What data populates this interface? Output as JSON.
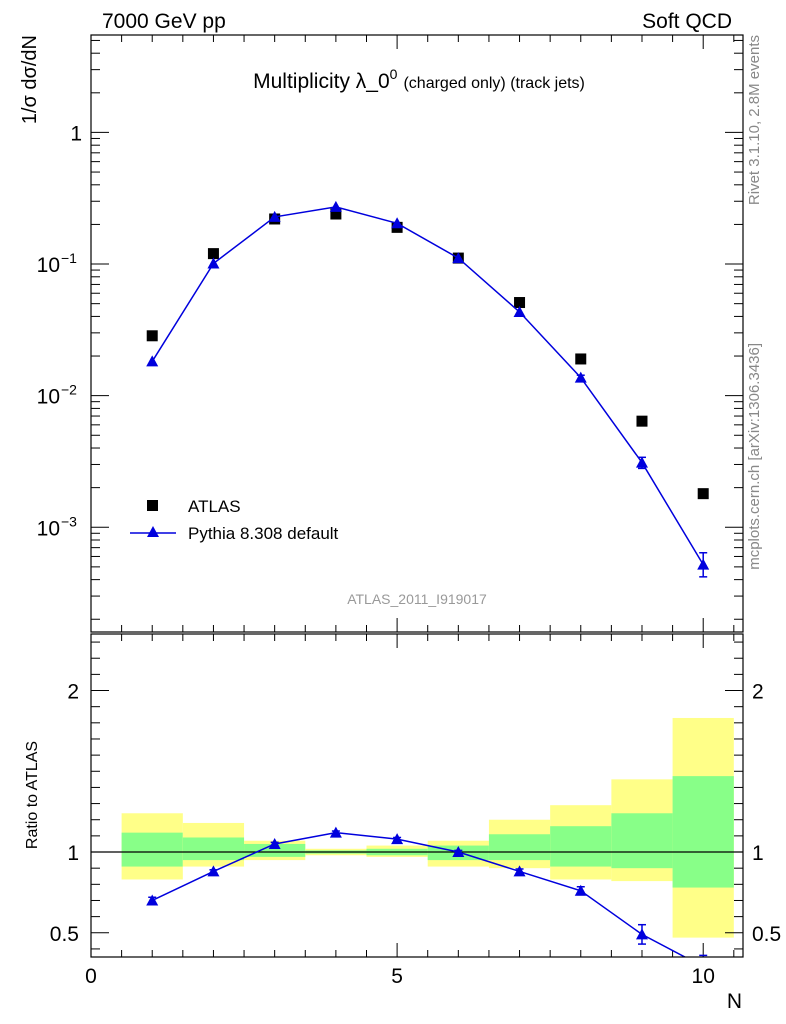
{
  "header": {
    "left": "7000 GeV pp",
    "right": "Soft QCD"
  },
  "side_labels": {
    "rivet": "Rivet 3.1.10,  2.8M events",
    "mcplots": "mcplots.cern.ch [arXiv:1306.3436]"
  },
  "chart_data": [
    {
      "type": "scatter",
      "title_main": "Multiplicity λ_0",
      "title_sup": "0",
      "title_sub": "(charged only) (track jets)",
      "ylabel": "1/σ dσ/dN",
      "yscale": "log",
      "ylim": [
        0.00016,
        5.5
      ],
      "xlim": [
        0,
        10.65
      ],
      "watermark": "ATLAS_2011_I919017",
      "y_ticks": [
        {
          "value": 1,
          "label": "1"
        },
        {
          "value": 0.1,
          "label": "10",
          "exp": "−1"
        },
        {
          "value": 0.01,
          "label": "10",
          "exp": "−2"
        },
        {
          "value": 0.001,
          "label": "10",
          "exp": "−3"
        }
      ],
      "legend_position": "bottom-left",
      "series": [
        {
          "name": "ATLAS",
          "marker": "square",
          "color": "#000000",
          "x": [
            1,
            2,
            3,
            4,
            5,
            6,
            7,
            8,
            9,
            10
          ],
          "y": [
            0.0285,
            0.12,
            0.22,
            0.24,
            0.19,
            0.111,
            0.051,
            0.019,
            0.0064,
            0.0018
          ]
        },
        {
          "name": "Pythia 8.308 default",
          "marker": "triangle",
          "color": "#0000dd",
          "x": [
            1,
            2,
            3,
            4,
            5,
            6,
            7,
            8,
            9,
            10
          ],
          "y": [
            0.0182,
            0.101,
            0.228,
            0.272,
            0.204,
            0.111,
            0.0432,
            0.0137,
            0.0031,
            0.00052
          ],
          "err_low": [
            0.0179,
            0.0995,
            0.225,
            0.269,
            0.202,
            0.11,
            0.0425,
            0.0131,
            0.0028,
            0.00042
          ],
          "err_high": [
            0.0185,
            0.1025,
            0.231,
            0.275,
            0.206,
            0.112,
            0.0439,
            0.0143,
            0.0034,
            0.00064
          ]
        }
      ]
    },
    {
      "type": "scatter",
      "ylabel": "Ratio to ATLAS",
      "xlabel": "N",
      "ylim": [
        0.35,
        2.35
      ],
      "xlim": [
        0,
        10.65
      ],
      "x_ticks": [
        {
          "value": 0,
          "label": "0"
        },
        {
          "value": 5,
          "label": "5"
        },
        {
          "value": 10,
          "label": "10"
        }
      ],
      "y_ticks": [
        {
          "value": 0.5,
          "label": "0.5"
        },
        {
          "value": 1,
          "label": "1"
        },
        {
          "value": 2,
          "label": "2"
        }
      ],
      "bands": {
        "bin_edges": [
          0.5,
          1.5,
          2.5,
          3.5,
          4.5,
          5.5,
          6.5,
          7.5,
          8.5,
          9.5,
          10.5
        ],
        "yellow_low": [
          0.83,
          0.91,
          0.95,
          0.98,
          0.97,
          0.91,
          0.9,
          0.83,
          0.82,
          0.47
        ],
        "yellow_high": [
          1.24,
          1.18,
          1.07,
          1.02,
          1.04,
          1.07,
          1.2,
          1.29,
          1.45,
          1.83
        ],
        "green_low": [
          0.91,
          0.95,
          0.97,
          0.99,
          0.98,
          0.95,
          0.95,
          0.91,
          0.9,
          0.78
        ],
        "green_high": [
          1.12,
          1.09,
          1.05,
          1.01,
          1.02,
          1.04,
          1.11,
          1.16,
          1.24,
          1.47
        ],
        "yellow_color": "#ffff88",
        "green_color": "#88ff88"
      },
      "series": [
        {
          "name": "Pythia 8.308 default",
          "marker": "triangle",
          "color": "#0000dd",
          "x": [
            1,
            2,
            3,
            4,
            5,
            6,
            7,
            8,
            9,
            10
          ],
          "y": [
            0.7,
            0.88,
            1.05,
            1.12,
            1.08,
            1.0,
            0.88,
            0.76,
            0.49,
            0.29
          ],
          "err_low": [
            0.68,
            0.87,
            1.04,
            1.11,
            1.07,
            0.99,
            0.865,
            0.735,
            0.43,
            0.22
          ],
          "err_high": [
            0.72,
            0.89,
            1.06,
            1.13,
            1.09,
            1.01,
            0.895,
            0.785,
            0.55,
            0.36
          ]
        }
      ]
    }
  ]
}
